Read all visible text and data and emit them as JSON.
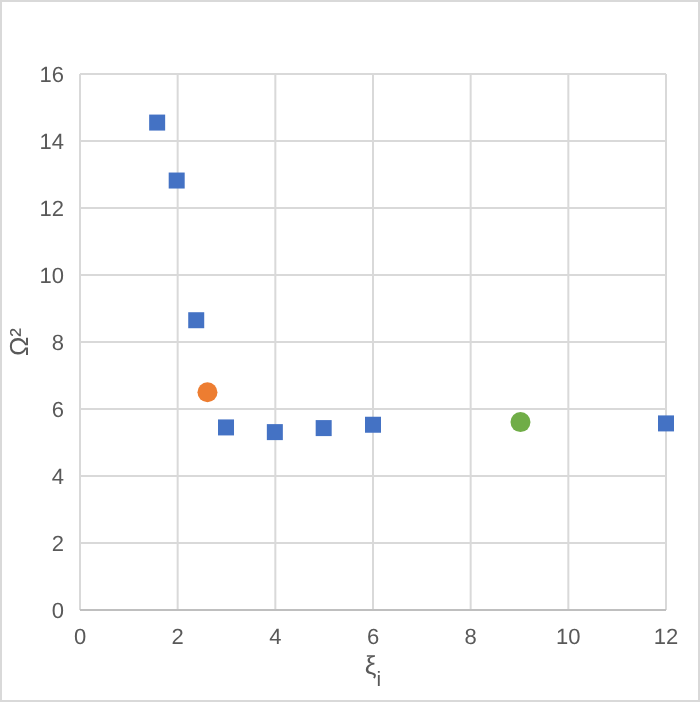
{
  "chart_data": {
    "type": "scatter",
    "xlabel": "ξ$_{i}$",
    "ylabel": "Ω²",
    "xlim": [
      0,
      12
    ],
    "xticks": [
      0,
      2,
      4,
      6,
      8,
      10,
      12
    ],
    "ylim": [
      0,
      16
    ],
    "yticks": [
      0,
      2,
      4,
      6,
      8,
      10,
      12,
      14,
      16
    ],
    "grid": true,
    "series": [
      {
        "color": "#4472c4",
        "marker": "square",
        "x": [
          1.58,
          1.98,
          2.38,
          2.99,
          3.99,
          4.99,
          6.0,
          12.0
        ],
        "values": [
          14.55,
          12.82,
          8.65,
          5.45,
          5.31,
          5.43,
          5.53,
          5.57
        ]
      },
      {
        "color": "#ed7d31",
        "marker": "circle",
        "x": [
          2.61
        ],
        "values": [
          6.5
        ]
      },
      {
        "color": "#70ad47",
        "marker": "circle",
        "x": [
          9.02
        ],
        "values": [
          5.61
        ]
      }
    ]
  }
}
